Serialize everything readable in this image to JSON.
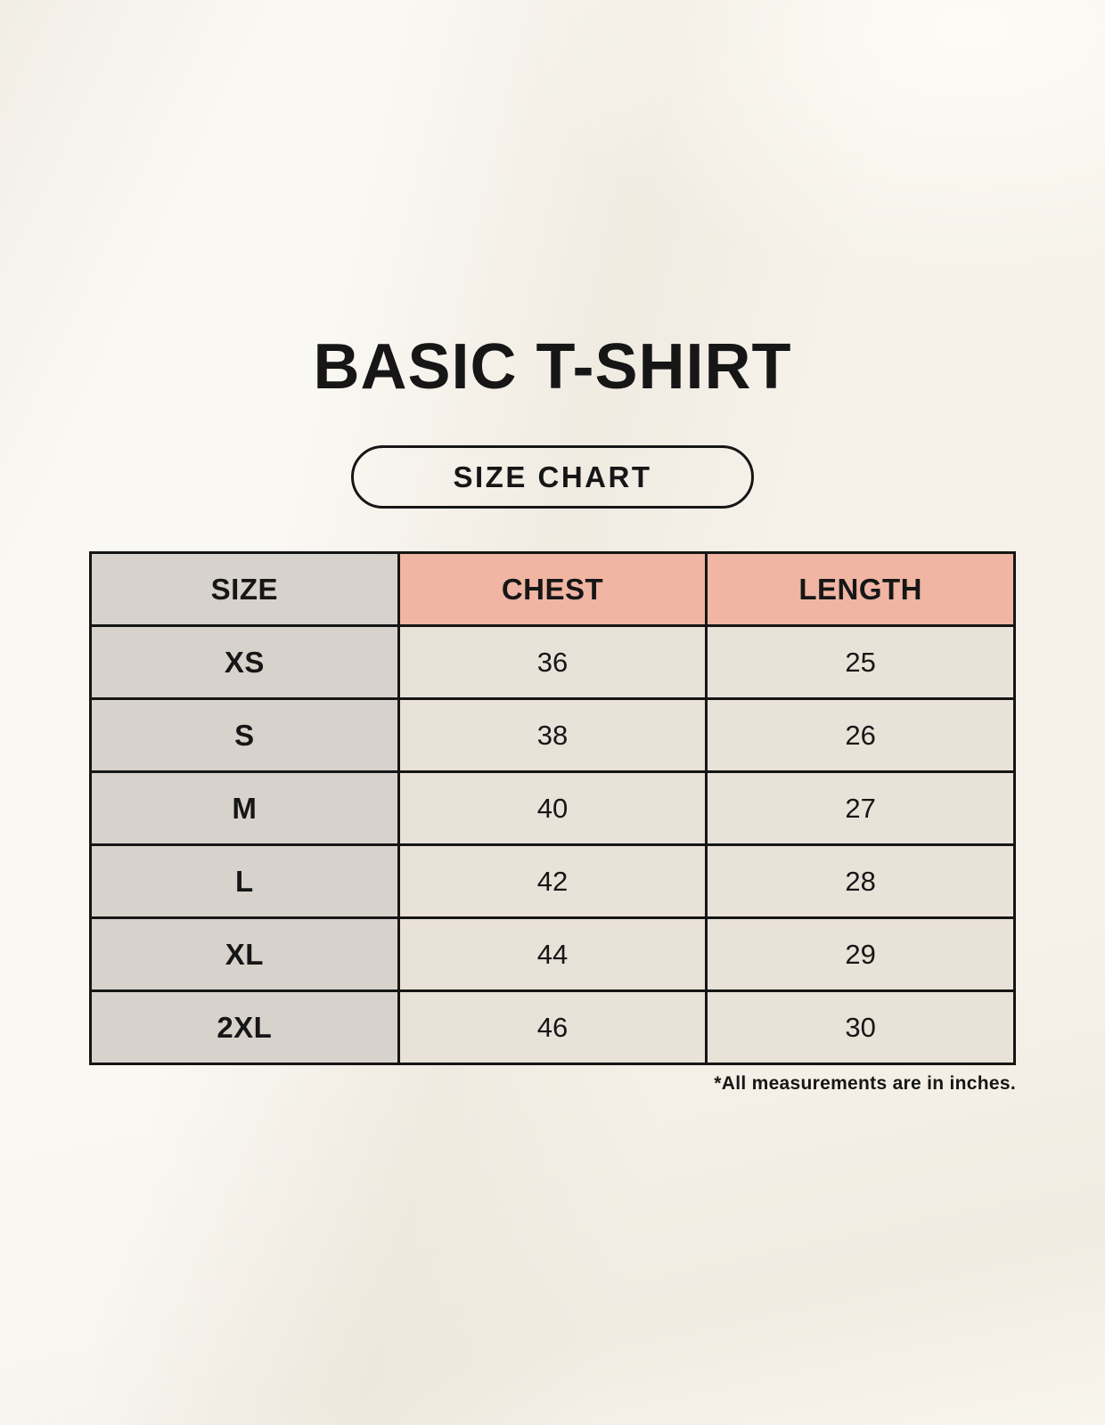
{
  "page": {
    "title": "BASIC T-SHIRT",
    "badge_label": "SIZE CHART",
    "footnote": "*All measurements are in inches."
  },
  "chart_data": {
    "type": "table",
    "title": "BASIC T-SHIRT size chart",
    "columns": [
      "SIZE",
      "CHEST",
      "LENGTH"
    ],
    "units": "inches",
    "rows": [
      {
        "size": "XS",
        "chest": 36,
        "length": 25
      },
      {
        "size": "S",
        "chest": 38,
        "length": 26
      },
      {
        "size": "M",
        "chest": 40,
        "length": 27
      },
      {
        "size": "L",
        "chest": 42,
        "length": 28
      },
      {
        "size": "XL",
        "chest": 44,
        "length": 29
      },
      {
        "size": "2XL",
        "chest": 46,
        "length": 30
      }
    ]
  },
  "colors": {
    "bg": "#f6f2ea",
    "label_col_bg": "#d8d2cc",
    "accent_header_bg": "#f0b5a3",
    "value_cell_bg": "#e9e2d8",
    "border": "#151515",
    "text": "#161616"
  }
}
